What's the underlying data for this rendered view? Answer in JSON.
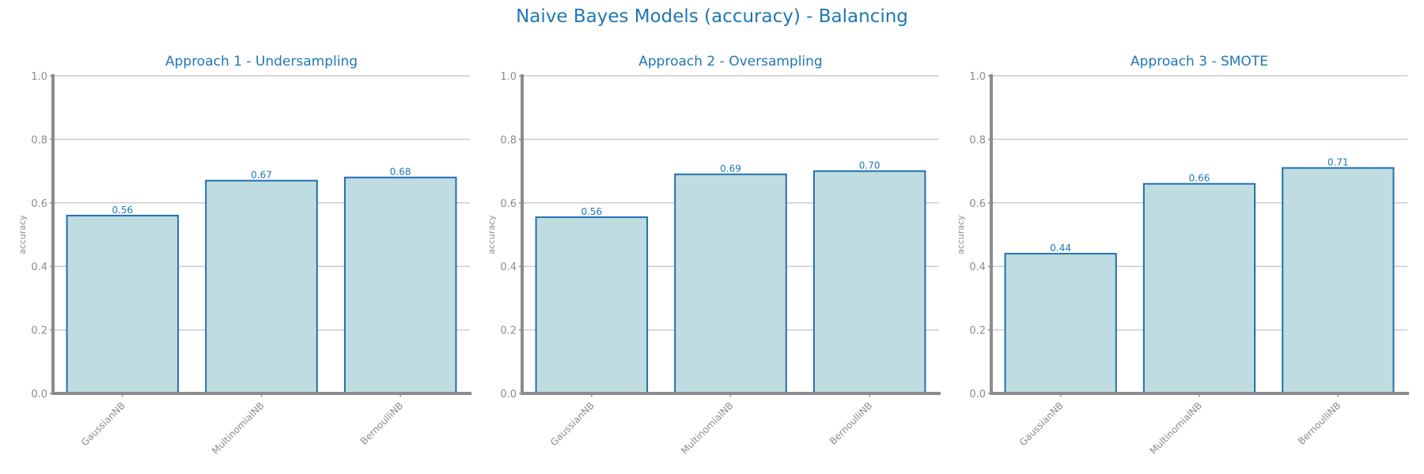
{
  "figure": {
    "title": "Naive Bayes Models (accuracy) - Balancing"
  },
  "colors": {
    "accent": "#1f77b4",
    "bar_fill": "#bfdde1",
    "bar_edge": "#1f6fb0",
    "axis": "#8c8c8c",
    "grid": "#cccccc",
    "tick_text": "#8c8c8c"
  },
  "chart_data": [
    {
      "type": "bar",
      "title": "Approach 1 - Undersampling",
      "categories": [
        "GaussianNB",
        "MultinomialNB",
        "BernoulliNB"
      ],
      "values": [
        0.56,
        0.67,
        0.68
      ],
      "value_labels": [
        "0.56",
        "0.67",
        "0.68"
      ],
      "xlabel": "",
      "ylabel": "accuracy",
      "ylim": [
        0,
        1
      ],
      "yticks": [
        "0.0",
        "0.2",
        "0.4",
        "0.6",
        "0.8",
        "1.0"
      ],
      "grid": "horizontal"
    },
    {
      "type": "bar",
      "title": "Approach 2 - Oversampling",
      "categories": [
        "GaussianNB",
        "MultinomialNB",
        "BernoulliNB"
      ],
      "values": [
        0.555,
        0.69,
        0.7
      ],
      "value_labels": [
        "0.56",
        "0.69",
        "0.70"
      ],
      "xlabel": "",
      "ylabel": "accuracy",
      "ylim": [
        0,
        1
      ],
      "yticks": [
        "0.0",
        "0.2",
        "0.4",
        "0.6",
        "0.8",
        "1.0"
      ],
      "grid": "horizontal"
    },
    {
      "type": "bar",
      "title": "Approach 3 - SMOTE",
      "categories": [
        "GaussianNB",
        "MultinomialNB",
        "BernoulliNB"
      ],
      "values": [
        0.44,
        0.66,
        0.71
      ],
      "value_labels": [
        "0.44",
        "0.66",
        "0.71"
      ],
      "xlabel": "",
      "ylabel": "accuracy",
      "ylim": [
        0,
        1
      ],
      "yticks": [
        "0.0",
        "0.2",
        "0.4",
        "0.6",
        "0.8",
        "1.0"
      ],
      "grid": "horizontal"
    }
  ]
}
